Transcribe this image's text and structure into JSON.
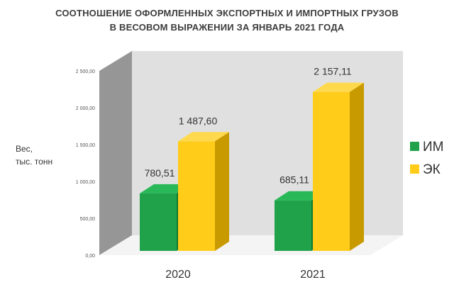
{
  "chart_data": {
    "type": "bar",
    "title": "СООТНОШЕНИЕ ОФОРМЛЕННЫХ ЭКСПОРТНЫХ И ИМПОРТНЫХ ГРУЗОВ",
    "subtitle": "В ВЕСОВОМ ВЫРАЖЕНИИ ЗА ЯНВАРЬ 2021 ГОДА",
    "ylabel": [
      "Вес,",
      "тыс. тонн"
    ],
    "xlabel": "",
    "categories": [
      "2020",
      "2021"
    ],
    "series": [
      {
        "name": "ИМ",
        "values": [
          780.51,
          685.11
        ],
        "labels": [
          "780,51",
          "685,11"
        ],
        "color": "#1fa24a",
        "dark": "#0f7a33",
        "light": "#29b858"
      },
      {
        "name": "ЭК",
        "values": [
          1487.6,
          2157.11
        ],
        "labels": [
          "1 487,60",
          "2 157,11"
        ],
        "color": "#ffcc1a",
        "dark": "#c99a00",
        "light": "#ffd94d"
      }
    ],
    "ylim": [
      0,
      2500
    ],
    "yticks": [
      0,
      500,
      1000,
      1500,
      2000,
      2500
    ],
    "ytick_labels": [
      "0,00",
      "500,00",
      "1 000,00",
      "1 500,00",
      "2 000,00",
      "2 500,00"
    ],
    "grid": false,
    "legend_position": "right",
    "style": "3d-column"
  }
}
